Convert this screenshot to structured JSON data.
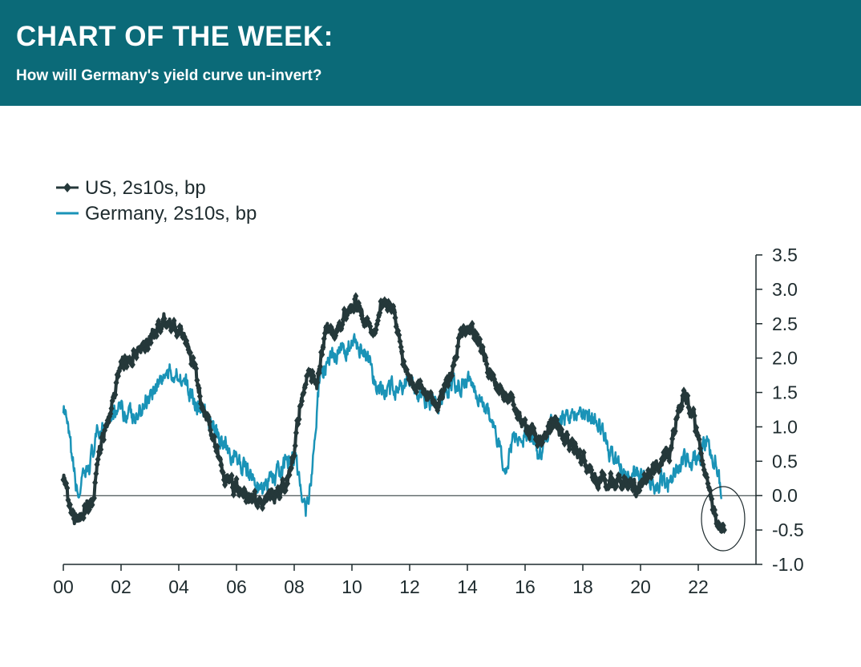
{
  "header": {
    "title": "CHART OF THE WEEK:",
    "subtitle": "How will Germany's yield curve un-invert?"
  },
  "colors": {
    "header_bg": "#0b6a78",
    "us": "#25383a",
    "germany": "#1a93b7",
    "axis": "#1e2b2e"
  },
  "chart_data": {
    "type": "line",
    "xlabel": "",
    "ylabel": "",
    "xlim": [
      2000,
      2024
    ],
    "ylim": [
      -1.0,
      3.5
    ],
    "x_ticks": [
      {
        "value": 2000,
        "label": "00"
      },
      {
        "value": 2002,
        "label": "02"
      },
      {
        "value": 2004,
        "label": "04"
      },
      {
        "value": 2006,
        "label": "06"
      },
      {
        "value": 2008,
        "label": "08"
      },
      {
        "value": 2010,
        "label": "10"
      },
      {
        "value": 2012,
        "label": "12"
      },
      {
        "value": 2014,
        "label": "14"
      },
      {
        "value": 2016,
        "label": "16"
      },
      {
        "value": 2018,
        "label": "18"
      },
      {
        "value": 2020,
        "label": "20"
      },
      {
        "value": 2022,
        "label": "22"
      }
    ],
    "y_ticks": [
      {
        "value": 3.5,
        "label": "3.5"
      },
      {
        "value": 3.0,
        "label": "3.0"
      },
      {
        "value": 2.5,
        "label": "2.5"
      },
      {
        "value": 2.0,
        "label": "2.0"
      },
      {
        "value": 1.5,
        "label": "1.5"
      },
      {
        "value": 1.0,
        "label": "1.0"
      },
      {
        "value": 0.5,
        "label": "0.5"
      },
      {
        "value": 0.0,
        "label": "0.0"
      },
      {
        "value": -0.5,
        "label": "-0.5"
      },
      {
        "value": -1.0,
        "label": "-1.0"
      }
    ],
    "y_axis_position": "right",
    "zero_line": true,
    "legend_position": "top-left",
    "annotation": "ellipse around late-2022 inversion",
    "series": [
      {
        "name": "US, 2s10s, bp",
        "color": "#25383a",
        "marker": "diamond",
        "x": [
          2000.0,
          2000.3,
          2000.6,
          2001.0,
          2001.3,
          2001.7,
          2002.0,
          2002.5,
          2003.0,
          2003.5,
          2003.8,
          2004.2,
          2004.5,
          2004.8,
          2005.2,
          2005.6,
          2006.0,
          2006.5,
          2007.0,
          2007.5,
          2007.8,
          2008.0,
          2008.2,
          2008.5,
          2008.8,
          2009.1,
          2009.4,
          2009.8,
          2010.1,
          2010.5,
          2010.8,
          2011.1,
          2011.5,
          2011.7,
          2012.0,
          2012.5,
          2013.0,
          2013.4,
          2013.8,
          2014.2,
          2014.6,
          2015.0,
          2015.5,
          2016.0,
          2016.5,
          2017.0,
          2017.5,
          2018.0,
          2018.5,
          2019.0,
          2019.6,
          2020.0,
          2020.5,
          2021.0,
          2021.2,
          2021.5,
          2021.8,
          2022.0,
          2022.3,
          2022.5,
          2022.7,
          2022.9
        ],
        "y": [
          0.3,
          -0.35,
          -0.25,
          -0.1,
          0.7,
          1.3,
          1.95,
          2.05,
          2.25,
          2.6,
          2.45,
          2.3,
          1.9,
          1.4,
          0.8,
          0.3,
          0.1,
          -0.05,
          -0.1,
          0.05,
          0.3,
          0.6,
          1.3,
          1.8,
          1.6,
          2.45,
          2.3,
          2.65,
          2.8,
          2.5,
          2.4,
          2.85,
          2.6,
          2.1,
          1.7,
          1.5,
          1.35,
          1.75,
          2.4,
          2.4,
          2.0,
          1.6,
          1.4,
          1.0,
          0.8,
          1.05,
          0.8,
          0.55,
          0.25,
          0.2,
          0.15,
          0.1,
          0.4,
          0.6,
          1.0,
          1.5,
          1.2,
          0.8,
          0.2,
          -0.2,
          -0.45,
          -0.5
        ]
      },
      {
        "name": "Germany, 2s10s, bp",
        "color": "#1a93b7",
        "marker": "none",
        "x": [
          2000.0,
          2000.2,
          2000.5,
          2000.8,
          2001.2,
          2001.6,
          2002.0,
          2002.5,
          2003.0,
          2003.5,
          2004.0,
          2004.5,
          2005.0,
          2005.5,
          2006.0,
          2006.4,
          2006.7,
          2007.0,
          2007.5,
          2008.0,
          2008.2,
          2008.4,
          2008.6,
          2008.9,
          2009.1,
          2009.4,
          2009.8,
          2010.2,
          2010.5,
          2010.8,
          2011.2,
          2011.6,
          2012.0,
          2012.5,
          2013.0,
          2013.5,
          2014.0,
          2014.5,
          2015.0,
          2015.3,
          2015.6,
          2016.0,
          2016.5,
          2017.0,
          2017.5,
          2018.0,
          2018.5,
          2019.0,
          2019.5,
          2020.0,
          2020.5,
          2021.0,
          2021.5,
          2022.0,
          2022.3,
          2022.5,
          2022.7,
          2022.8
        ],
        "y": [
          1.3,
          0.8,
          0.0,
          0.3,
          0.9,
          1.2,
          1.25,
          1.1,
          1.5,
          1.75,
          1.8,
          1.4,
          1.1,
          0.8,
          0.5,
          0.4,
          0.1,
          0.1,
          0.35,
          0.6,
          0.2,
          -0.2,
          0.3,
          1.8,
          1.9,
          2.0,
          2.15,
          2.2,
          2.0,
          1.6,
          1.5,
          1.6,
          1.65,
          1.4,
          1.3,
          1.6,
          1.7,
          1.4,
          0.9,
          0.4,
          0.8,
          0.9,
          0.6,
          1.1,
          1.2,
          1.2,
          1.05,
          0.6,
          0.3,
          0.3,
          0.2,
          0.2,
          0.5,
          0.55,
          0.8,
          0.6,
          0.4,
          -0.05
        ]
      }
    ]
  }
}
